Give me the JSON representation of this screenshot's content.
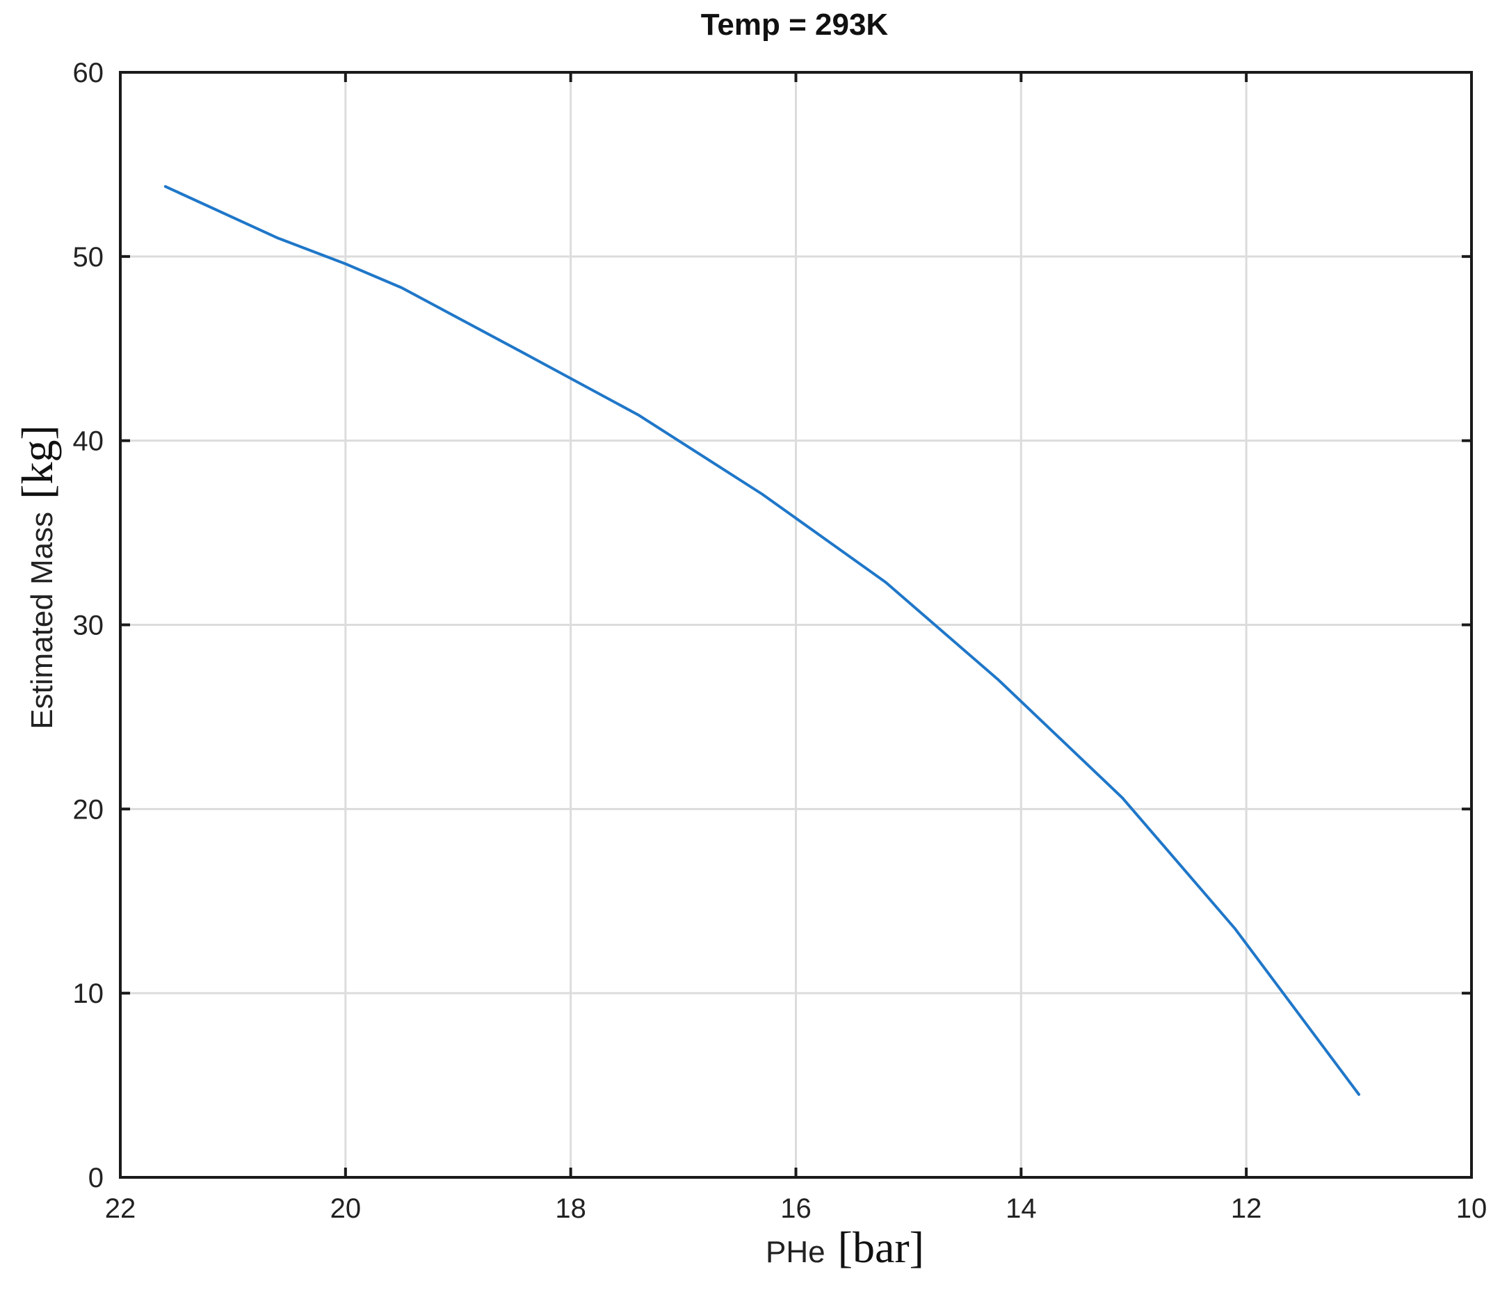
{
  "chart_data": {
    "type": "line",
    "title": "Temp = 293K",
    "xlabel": "PHe",
    "xlabel_unit": "[bar]",
    "ylabel": "Estimated Mass",
    "ylabel_unit": "[kg]",
    "xlim": [
      22,
      10
    ],
    "x_reversed": true,
    "ylim": [
      0,
      60
    ],
    "xticks": [
      22,
      20,
      18,
      16,
      14,
      12,
      10
    ],
    "yticks": [
      0,
      10,
      20,
      30,
      40,
      50,
      60
    ],
    "grid": true,
    "series": [
      {
        "color": "#1f77c9",
        "x": [
          21.6,
          20.6,
          20.0,
          19.5,
          18.4,
          17.4,
          16.3,
          15.2,
          14.2,
          13.1,
          12.1,
          11.0
        ],
        "y": [
          53.8,
          51.0,
          49.6,
          48.3,
          44.7,
          41.4,
          37.1,
          32.3,
          27.0,
          20.6,
          13.5,
          4.5
        ]
      }
    ]
  }
}
